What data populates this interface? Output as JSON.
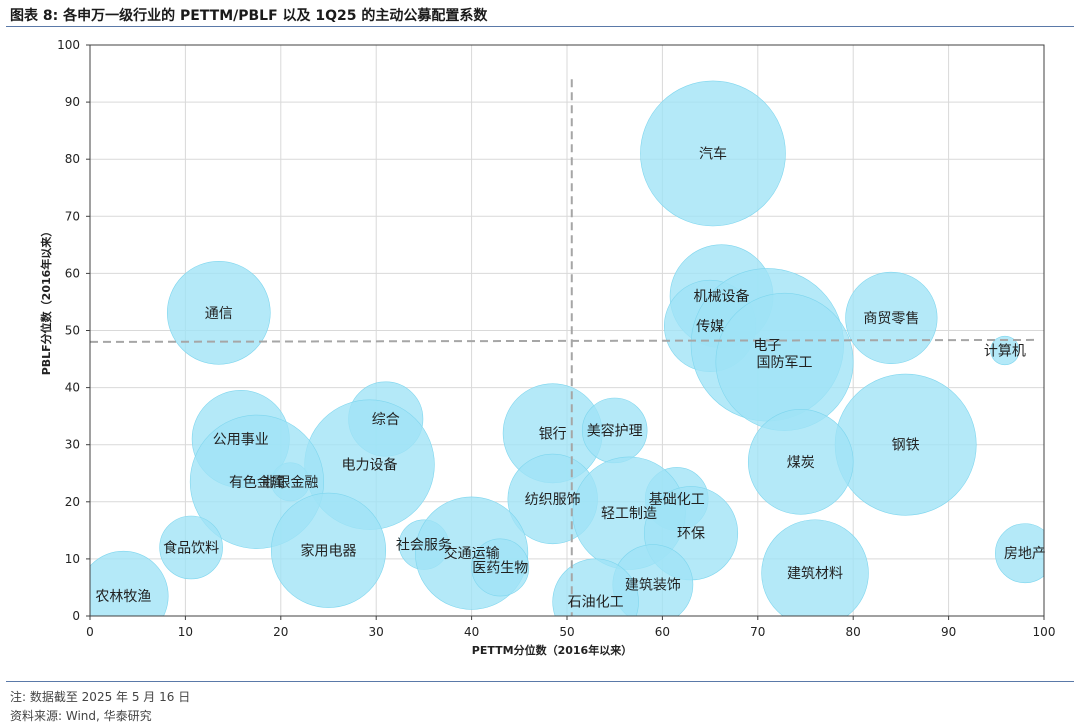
{
  "header": {
    "title": "图表 8:   各申万一级行业的 PETTM/PBLF 以及 1Q25 的主动公募配置系数"
  },
  "footer": {
    "note": "注: 数据截至 2025 年 5 月 16 日",
    "source": "资料来源: Wind, 华泰研究"
  },
  "colors": {
    "bubble_fill": "#9fe3f6",
    "bubble_stroke": "#7fd6ee",
    "grid": "#d9d9d9",
    "median_line": "#a6a6a6"
  },
  "chart_data": {
    "type": "scatter",
    "subtype": "bubble",
    "xlabel": "PETTM分位数（2016年以来）",
    "ylabel": "PBLF分位数（2016年以来）",
    "xlim": [
      0,
      100
    ],
    "ylim": [
      0,
      100
    ],
    "xticks": [
      0,
      10,
      20,
      30,
      40,
      50,
      60,
      70,
      80,
      90,
      100
    ],
    "yticks": [
      0,
      10,
      20,
      30,
      40,
      50,
      60,
      70,
      80,
      90,
      100
    ],
    "grid": true,
    "reference_lines": {
      "x": 50.5,
      "y": 48
    },
    "size_note": "bubble radius reflects 1Q25 active fund allocation coefficient (relative)",
    "points": [
      {
        "name": "汽车",
        "x": 65.3,
        "y": 81,
        "size": 7.6
      },
      {
        "name": "机械设备",
        "x": 66.2,
        "y": 56,
        "size": 5.4
      },
      {
        "name": "传媒",
        "x": 65,
        "y": 50.8,
        "size": 4.8
      },
      {
        "name": "电子",
        "x": 71,
        "y": 47.5,
        "size": 8.0
      },
      {
        "name": "国防军工",
        "x": 72.8,
        "y": 44.5,
        "size": 7.2
      },
      {
        "name": "商贸零售",
        "x": 84,
        "y": 52.2,
        "size": 4.8
      },
      {
        "name": "计算机",
        "x": 95.9,
        "y": 46.5,
        "size": 1.5
      },
      {
        "name": "通信",
        "x": 13.5,
        "y": 53.1,
        "size": 5.4
      },
      {
        "name": "钢铁",
        "x": 85.5,
        "y": 30,
        "size": 7.4
      },
      {
        "name": "煤炭",
        "x": 74.5,
        "y": 27,
        "size": 5.5
      },
      {
        "name": "综合",
        "x": 31,
        "y": 34.5,
        "size": 3.9
      },
      {
        "name": "公用事业",
        "x": 15.8,
        "y": 31,
        "size": 5.1
      },
      {
        "name": "电力设备",
        "x": 29.3,
        "y": 26.5,
        "size": 6.8
      },
      {
        "name": "非银金融",
        "x": 21,
        "y": 23.5,
        "size": 2.0
      },
      {
        "name": "有色金属",
        "x": 17.5,
        "y": 23.5,
        "size": 7.0
      },
      {
        "name": "银行",
        "x": 48.5,
        "y": 32,
        "size": 5.2
      },
      {
        "name": "美容护理",
        "x": 55,
        "y": 32.5,
        "size": 3.4
      },
      {
        "name": "纺织服饰",
        "x": 48.5,
        "y": 20.5,
        "size": 4.7
      },
      {
        "name": "基础化工",
        "x": 61.5,
        "y": 20.5,
        "size": 3.3
      },
      {
        "name": "轻工制造",
        "x": 56.5,
        "y": 18,
        "size": 5.9
      },
      {
        "name": "环保",
        "x": 63,
        "y": 14.5,
        "size": 4.9
      },
      {
        "name": "食品饮料",
        "x": 10.6,
        "y": 12,
        "size": 3.3
      },
      {
        "name": "家用电器",
        "x": 25,
        "y": 11.5,
        "size": 6.0
      },
      {
        "name": "社会服务",
        "x": 35,
        "y": 12.5,
        "size": 2.6
      },
      {
        "name": "交通运输",
        "x": 40,
        "y": 11,
        "size": 5.9
      },
      {
        "name": "医药生物",
        "x": 43,
        "y": 8.5,
        "size": 3.0
      },
      {
        "name": "建筑装饰",
        "x": 59,
        "y": 5.5,
        "size": 4.2
      },
      {
        "name": "石油化工",
        "x": 53,
        "y": 2.5,
        "size": 4.5
      },
      {
        "name": "建筑材料",
        "x": 76,
        "y": 7.5,
        "size": 5.6
      },
      {
        "name": "农林牧渔",
        "x": 3.5,
        "y": 3.5,
        "size": 4.7
      },
      {
        "name": "房地产",
        "x": 98,
        "y": 11,
        "size": 3.1
      }
    ]
  }
}
